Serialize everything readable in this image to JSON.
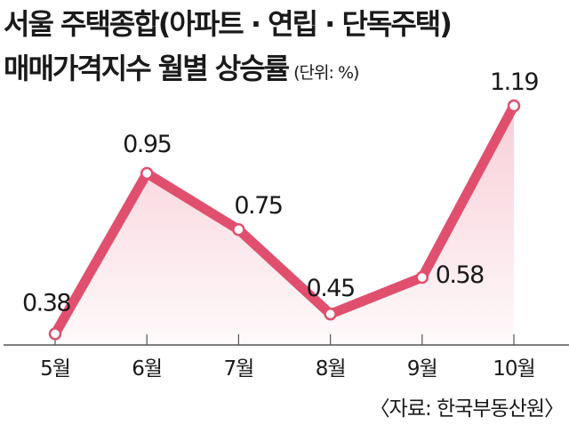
{
  "title_line1": "서울 주택종합(아파트 · 연립 · 단독주택)",
  "title_line2": "매매가격지수 월별 상승률",
  "unit": "(단위: %)",
  "source": "〈자료: 한국부동산원〉",
  "colors": {
    "line": "#e0506e",
    "fill": "#f7c9d3",
    "axis": "#555555"
  },
  "chart_data": {
    "type": "line",
    "categories": [
      "5월",
      "6월",
      "7월",
      "8월",
      "9월",
      "10월"
    ],
    "values": [
      0.38,
      0.95,
      0.75,
      0.45,
      0.58,
      1.19
    ],
    "data_labels": [
      "0.38",
      "0.95",
      "0.75",
      "0.45",
      "0.58",
      "1.19"
    ],
    "ylim": [
      0.34,
      1.25
    ],
    "grid": false,
    "area_fill": true
  }
}
